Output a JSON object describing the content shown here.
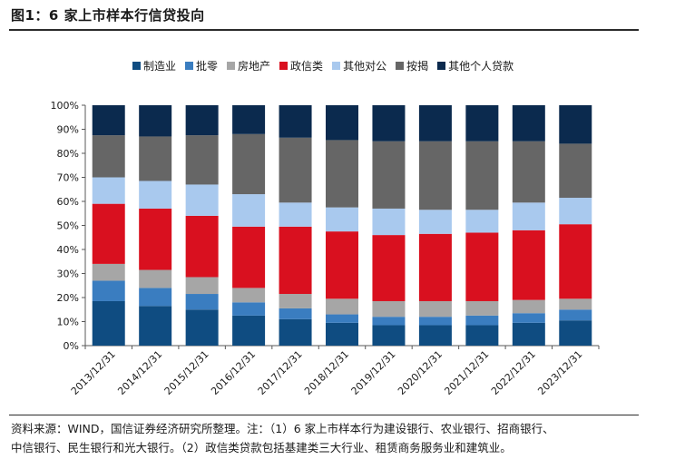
{
  "header": {
    "title": "图1：6 家上市样本行信贷投向"
  },
  "footer": {
    "note_line1": "资料来源：WIND，国信证券经济研究所整理。注：（1）6 家上市样本行为建设银行、农业银行、招商银行、",
    "note_line2": "中信银行、民生银行和光大银行。（2）政信类贷款包括基建类三大行业、租赁商务服务业和建筑业。"
  },
  "chart_data": {
    "type": "bar",
    "stacked": true,
    "percent": true,
    "categories": [
      "2013/12/31",
      "2014/12/31",
      "2015/12/31",
      "2016/12/31",
      "2017/12/31",
      "2018/12/31",
      "2019/12/31",
      "2020/12/31",
      "2021/12/31",
      "2022/12/31",
      "2023/12/31"
    ],
    "ylim": [
      0,
      100
    ],
    "yticks": [
      "0%",
      "10%",
      "20%",
      "30%",
      "40%",
      "50%",
      "60%",
      "70%",
      "80%",
      "90%",
      "100%"
    ],
    "legend_position": "top",
    "grid": false,
    "series": [
      {
        "name": "制造业",
        "color": "#0f4c81",
        "values": [
          18.5,
          16.5,
          15,
          12.5,
          11,
          9.5,
          8.5,
          8.5,
          8.5,
          9.5,
          10.5
        ]
      },
      {
        "name": "批零",
        "color": "#3a7dc0",
        "values": [
          8.5,
          7.5,
          6.5,
          5.5,
          4.5,
          3.5,
          3.5,
          3.5,
          4,
          4,
          4.5
        ]
      },
      {
        "name": "房地产",
        "color": "#a6a6a6",
        "values": [
          7,
          7.5,
          7,
          6,
          6,
          6.5,
          6.5,
          6.5,
          6,
          5.5,
          4.5
        ]
      },
      {
        "name": "政信类",
        "color": "#d9101f",
        "values": [
          25,
          25.5,
          25.5,
          25.5,
          28,
          28,
          27.5,
          28,
          28.5,
          29,
          31
        ]
      },
      {
        "name": "其他对公",
        "color": "#a9c9ee",
        "values": [
          11,
          11.5,
          13,
          13.5,
          10,
          10,
          11,
          10,
          9.5,
          11.5,
          11
        ]
      },
      {
        "name": "按揭",
        "color": "#666666",
        "values": [
          17.5,
          18.5,
          20.5,
          25,
          27,
          28,
          28,
          28.5,
          28.5,
          25.5,
          22.5
        ]
      },
      {
        "name": "其他个人贷款",
        "color": "#0b2a4e",
        "values": [
          12.5,
          13,
          12.5,
          12,
          13.5,
          14.5,
          15,
          15,
          15,
          15,
          16
        ]
      }
    ]
  }
}
